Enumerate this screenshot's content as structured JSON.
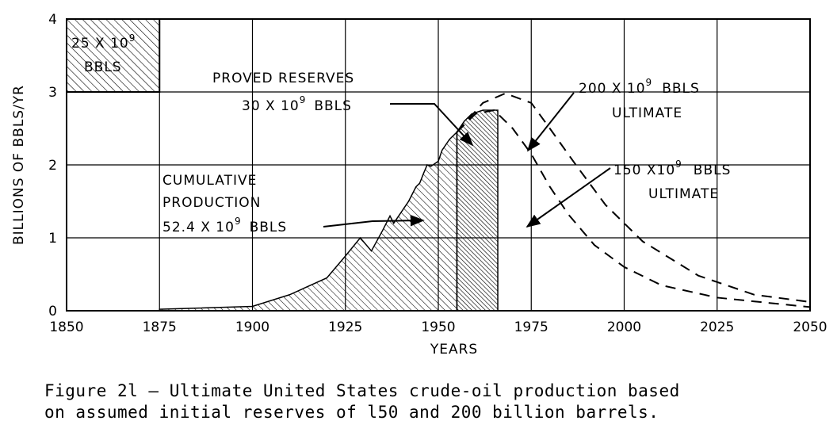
{
  "chart_data": {
    "type": "area",
    "title": "",
    "xlabel": "YEARS",
    "ylabel": "BILLIONS OF BBLS/YR",
    "xlim": [
      1850,
      2050
    ],
    "ylim": [
      0,
      4
    ],
    "x_ticks": [
      "1850",
      "1875",
      "1900",
      "1925",
      "1950",
      "1975",
      "2000",
      "2025",
      "2050"
    ],
    "y_ticks": [
      "0",
      "1",
      "2",
      "3",
      "4"
    ],
    "grid": true,
    "series": [
      {
        "name": "Cumulative production",
        "style": "hatched area",
        "points": [
          [
            1875,
            0.02
          ],
          [
            1900,
            0.06
          ],
          [
            1910,
            0.22
          ],
          [
            1920,
            0.45
          ],
          [
            1925,
            0.75
          ],
          [
            1929,
            1.0
          ],
          [
            1932,
            0.82
          ],
          [
            1935,
            1.1
          ],
          [
            1937,
            1.3
          ],
          [
            1938,
            1.2
          ],
          [
            1940,
            1.35
          ],
          [
            1942,
            1.5
          ],
          [
            1944,
            1.7
          ],
          [
            1945,
            1.75
          ],
          [
            1946,
            1.88
          ],
          [
            1947,
            2.0
          ],
          [
            1948,
            1.98
          ],
          [
            1950,
            2.05
          ],
          [
            1951,
            2.2
          ],
          [
            1953,
            2.35
          ],
          [
            1955,
            2.45
          ]
        ]
      },
      {
        "name": "Proved reserves",
        "style": "dense hatched area",
        "points": [
          [
            1955,
            2.45
          ],
          [
            1957,
            2.6
          ],
          [
            1959,
            2.7
          ],
          [
            1962,
            2.75
          ],
          [
            1966,
            2.75
          ],
          [
            1966,
            0
          ],
          [
            1955,
            0
          ]
        ]
      },
      {
        "name": "200 x 10^9 bbls ultimate",
        "style": "dashed",
        "points": [
          [
            1955,
            2.45
          ],
          [
            1962,
            2.85
          ],
          [
            1968,
            2.98
          ],
          [
            1975,
            2.85
          ],
          [
            1980,
            2.5
          ],
          [
            1987,
            2.0
          ],
          [
            1995,
            1.45
          ],
          [
            2005,
            0.95
          ],
          [
            2020,
            0.48
          ],
          [
            2035,
            0.22
          ],
          [
            2050,
            0.12
          ]
        ]
      },
      {
        "name": "150 x 10^9 bbls ultimate",
        "style": "dashed",
        "points": [
          [
            1955,
            2.45
          ],
          [
            1960,
            2.7
          ],
          [
            1965,
            2.75
          ],
          [
            1970,
            2.5
          ],
          [
            1975,
            2.15
          ],
          [
            1980,
            1.7
          ],
          [
            1985,
            1.32
          ],
          [
            1992,
            0.9
          ],
          [
            2000,
            0.6
          ],
          [
            2010,
            0.35
          ],
          [
            2025,
            0.18
          ],
          [
            2050,
            0.05
          ]
        ]
      }
    ],
    "legend_box": {
      "label_line1": "25 X 10",
      "label_sup": "9",
      "label_line2": "BBLS",
      "x_range": [
        1850,
        1875
      ],
      "y_range": [
        3,
        4
      ]
    },
    "annotations": {
      "proved_reserves": {
        "line1": "PROVED RESERVES",
        "line2": "30 X 10",
        "sup": "9",
        "line2b": "BBLS"
      },
      "cumulative": {
        "line1": "CUMULATIVE",
        "line2": "PRODUCTION",
        "line3": "52.4 X 10",
        "sup": "9",
        "line3b": "BBLS"
      },
      "ult200": {
        "line1": "200 X 10",
        "sup": "9",
        "line1b": "BBLS",
        "line2": "ULTIMATE"
      },
      "ult150": {
        "line1": "150 X10",
        "sup": "9",
        "line1b": "BBLS",
        "line2": "ULTIMATE"
      }
    }
  },
  "caption": {
    "line1": "Figure 2l – Ultimate United States crude-oil production based",
    "line2": "on assumed initial reserves of l50 and 200 billion barrels."
  }
}
